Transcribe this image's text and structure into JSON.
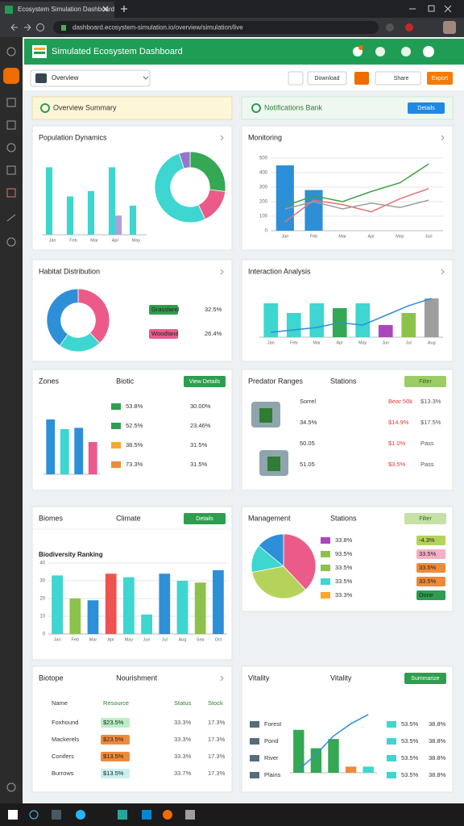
{
  "browser": {
    "tab_title": "Ecosystem Simulation Dashboard",
    "url": "dashboard.ecosystem-simulation.io/overview/simulation/live"
  },
  "header": {
    "title": "Simulated Ecosystem Dashboard"
  },
  "toolbar": {
    "dropdown": "Overview",
    "buttons": [
      "Download",
      "Share",
      "Export"
    ]
  },
  "banners": [
    {
      "title": "Overview Summary"
    },
    {
      "title": "Notifications Bank",
      "button": "Details"
    }
  ],
  "panels": [
    {
      "title": "Population Dynamics",
      "charts": [
        {
          "type": "bar",
          "categories": [
            "Jan",
            "Feb",
            "Mar",
            "Apr",
            "May"
          ],
          "ylim": [
            0,
            100
          ],
          "series": [
            {
              "color": "#3dd6d0",
              "values": [
                88,
                50,
                57,
                88,
                38
              ]
            },
            {
              "color": "#b39ddb",
              "values": [
                null,
                null,
                null,
                25,
                null
              ]
            }
          ]
        },
        {
          "type": "donut",
          "values": [
            27,
            16,
            52,
            5
          ],
          "colors": [
            "#34a853",
            "#ec5a8a",
            "#3dd6d0",
            "#9575cd"
          ]
        }
      ]
    },
    {
      "title": "Monitoring",
      "charts": [
        {
          "type": "combo",
          "categories": [
            "Jan",
            "Feb",
            "Mar",
            "Apr",
            "May",
            "Jun"
          ],
          "ylim": [
            0,
            500
          ],
          "yticks": [
            0,
            100,
            200,
            300,
            400,
            500
          ],
          "grid": true,
          "series": [
            {
              "mark": "bar",
              "color": "#2d8fd8",
              "values": [
                450,
                280,
                null,
                null,
                null,
                null
              ]
            },
            {
              "mark": "line",
              "color": "#43a047",
              "values": [
                170,
                240,
                200,
                270,
                330,
                460
              ]
            },
            {
              "mark": "line",
              "color": "#e57373",
              "values": [
                60,
                210,
                180,
                130,
                220,
                290
              ]
            },
            {
              "mark": "line",
              "color": "#9e9e9e",
              "values": [
                150,
                200,
                150,
                190,
                160,
                210
              ]
            }
          ]
        }
      ]
    },
    {
      "title": "Habitat Distribution",
      "charts": [
        {
          "type": "donut",
          "values": [
            38,
            22,
            40
          ],
          "colors": [
            "#ec5a8a",
            "#3dd6d0",
            "#2d8fd8"
          ]
        }
      ],
      "rows": [
        [
          "Grassland",
          "32.5%"
        ],
        [
          "Woodland",
          "26.4%"
        ]
      ]
    },
    {
      "title": "Interaction Analysis",
      "charts": [
        {
          "type": "combo",
          "categories": [
            "Jan",
            "Feb",
            "Mar",
            "Apr",
            "May",
            "Jun",
            "Jul",
            "Aug"
          ],
          "ylim": [
            0,
            100
          ],
          "series": [
            {
              "mark": "bar",
              "colors": [
                "#3dd6d0",
                "#3dd6d0",
                "#3dd6d0",
                "#34a853",
                "#3dd6d0",
                "#ab47bc",
                "#8bc34a",
                "#9e9e9e"
              ],
              "values": [
                70,
                50,
                70,
                60,
                70,
                25,
                50,
                80
              ]
            },
            {
              "mark": "line",
              "color": "#2d8fd8",
              "values": [
                10,
                15,
                20,
                30,
                25,
                45,
                65,
                80
              ]
            }
          ]
        }
      ]
    },
    {
      "title": "Zones",
      "subtitle": "Biotic",
      "button": "View Details",
      "button_color": "#2e9d4f",
      "charts": [
        {
          "type": "bar",
          "categories": [
            null,
            null,
            null,
            null
          ],
          "ylim": [
            0,
            100
          ],
          "series": [
            {
              "colors": [
                "#2d8fd8",
                "#3dd6d0",
                "#2d8fd8",
                "#ec5a8a"
              ],
              "values": [
                85,
                70,
                72,
                50
              ]
            }
          ]
        }
      ],
      "rows": [
        [
          "53.8%",
          "30.00%"
        ],
        [
          "52.5%",
          "23.46%"
        ],
        [
          "38.5%",
          "31.5%"
        ],
        [
          "73.3%",
          "31.5%"
        ]
      ]
    },
    {
      "title": "Predator Ranges",
      "subtitle": "Stations",
      "button": "Filter",
      "button_color": "#9ccc65",
      "rows": [
        [
          "Sorrel",
          "Bear 50k",
          "$13.3%"
        ],
        [
          "34.5%",
          "$14.9%",
          "$17.5%"
        ],
        [
          "50.05",
          "$1.0%",
          "Pass"
        ],
        [
          "51.05",
          "$3.5%",
          "Pass"
        ]
      ]
    },
    {
      "title": "Biomes",
      "subtitle": "Climate",
      "button": "Details",
      "button_color": "#2e9d4f",
      "caption": "Biodiversity Ranking",
      "charts": [
        {
          "type": "bar",
          "categories": [
            "Jan",
            "Feb",
            "Mar",
            "Apr",
            "May",
            "Jun",
            "Jul",
            "Aug",
            "Sep",
            "Oct"
          ],
          "ylim": [
            0,
            40
          ],
          "yticks": [
            0,
            10,
            20,
            30,
            40
          ],
          "grid": true,
          "series": [
            {
              "colors": [
                "#3dd6d0",
                "#8bc34a",
                "#2d8fd8",
                "#ef5350",
                "#3dd6d0",
                "#3dd6d0",
                "#2d8fd8",
                "#3dd6d0",
                "#8bc34a",
                "#2d8fd8"
              ],
              "values": [
                33,
                20,
                19,
                34,
                32,
                11,
                34,
                30,
                29,
                36
              ]
            }
          ]
        }
      ]
    },
    {
      "title": "Management",
      "subtitle": "Stations",
      "button": "Filter",
      "button_color": "#c5e1a5",
      "charts": [
        {
          "type": "pie",
          "values": [
            38,
            34,
            14,
            14
          ],
          "colors": [
            "#ec5a8a",
            "#b5d35b",
            "#3dd6d0",
            "#2d8fd8"
          ]
        }
      ],
      "rows": [
        [
          "33.8%",
          "-4.3%"
        ],
        [
          "93.5%",
          "33.5%"
        ],
        [
          "33.5%",
          "33.5%"
        ],
        [
          "33.5%",
          "33.5%"
        ],
        [
          "33.3%",
          "Done"
        ]
      ]
    },
    {
      "title": "Biotope",
      "subtitle": "Nourishment",
      "header_row": [
        "Name",
        "Resource",
        "Status",
        "Stock"
      ],
      "rows": [
        [
          "Foxhound",
          "$23.5%",
          "33.3%",
          "17.3%"
        ],
        [
          "Mackerels",
          "$23.5%",
          "33.3%",
          "17.3%"
        ],
        [
          "Conifers",
          "$13.5%",
          "33.3%",
          "17.3%"
        ],
        [
          "Burrows",
          "$13.5%",
          "33.7%",
          "17.3%"
        ]
      ]
    },
    {
      "title": "Vitality",
      "subtitle": "Vitality",
      "button": "Summarize",
      "button_color": "#2e9d4f",
      "charts": [
        {
          "type": "combo",
          "categories": [
            null,
            null,
            null,
            null,
            null
          ],
          "ylim": [
            0,
            100
          ],
          "series": [
            {
              "mark": "bar",
              "colors": [
                "#34a853",
                "#34a853",
                "#34a853",
                "#ef8a3a",
                "#3dd6d0"
              ],
              "values": [
                70,
                40,
                55,
                10,
                10
              ]
            },
            {
              "mark": "line",
              "color": "#2d8fd8",
              "values": [
                5,
                30,
                60,
                80,
                95
              ]
            }
          ]
        }
      ],
      "rows": [
        [
          "Forest",
          "53.5%",
          "38.8%"
        ],
        [
          "Pond",
          "53.5%",
          "38.8%"
        ],
        [
          "River",
          "53.5%",
          "38.8%"
        ],
        [
          "Plains",
          "53.5%",
          "38.8%"
        ]
      ]
    }
  ]
}
